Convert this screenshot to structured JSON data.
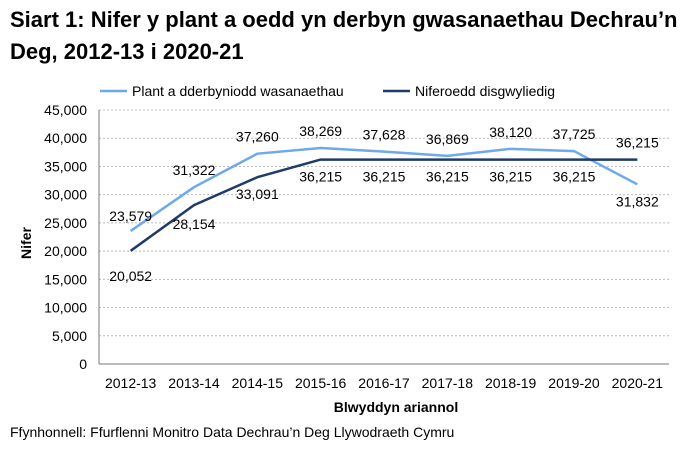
{
  "chart_data": {
    "type": "line",
    "title": "Siart 1: Nifer y plant a oedd yn derbyn gwasanaethau Dechrau’n Deg, 2012-13 i 2020-21",
    "xlabel": "Blwyddyn ariannol",
    "ylabel": "Nifer",
    "ylim": [
      0,
      45000
    ],
    "yticks": [
      "0",
      "5,000",
      "10,000",
      "15,000",
      "20,000",
      "25,000",
      "30,000",
      "35,000",
      "40,000",
      "45,000"
    ],
    "grid": true,
    "legend_position": "top",
    "categories": [
      "2012-13",
      "2013-14",
      "2014-15",
      "2015-16",
      "2016-17",
      "2017-18",
      "2018-19",
      "2019-20",
      "2020-21"
    ],
    "series": [
      {
        "name": "Plant a dderbyniodd wasanaethau",
        "color": "#6FA8EC",
        "values": [
          23579,
          31322,
          37260,
          38269,
          37628,
          36869,
          38120,
          37725,
          31832
        ],
        "labels": [
          "23,579",
          "31,322",
          "37,260",
          "38,269",
          "37,628",
          "36,869",
          "38,120",
          "37,725",
          "31,832"
        ]
      },
      {
        "name": "Niferoedd disgwyliedig",
        "color": "#1F3A6B",
        "values": [
          20052,
          28154,
          33091,
          36215,
          36215,
          36215,
          36215,
          36215,
          36215
        ],
        "labels": [
          "20,052",
          "28,154",
          "33,091",
          "36,215",
          "36,215",
          "36,215",
          "36,215",
          "36,215",
          "36,215"
        ]
      }
    ]
  },
  "source": "Ffynhonnell: Ffurflenni Monitro Data Dechrau’n Deg Llywodraeth Cymru"
}
